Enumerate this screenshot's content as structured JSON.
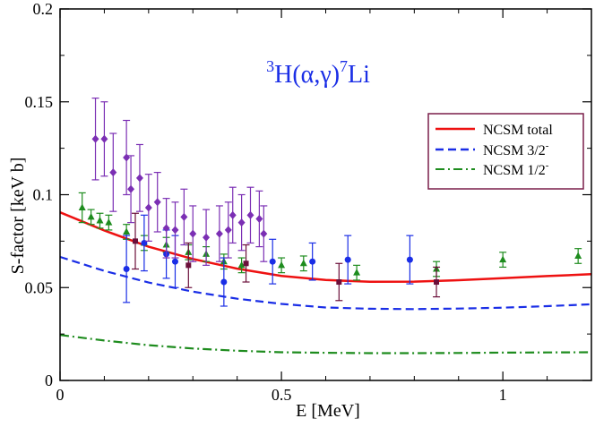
{
  "chart_data": {
    "type": "scatter",
    "title_parts": {
      "mass": "3",
      "element": "H(",
      "alpha": "α",
      "comma": ",",
      "gamma": "γ",
      "close": ")",
      "mass2": "7",
      "product": "Li"
    },
    "xlabel": "E [MeV]",
    "ylabel": "S-factor [keV b]",
    "xlim": [
      0,
      1.2
    ],
    "ylim": [
      0,
      0.2
    ],
    "x_ticks": [
      {
        "value": 0,
        "label": "0"
      },
      {
        "value": 0.5,
        "label": "0.5"
      },
      {
        "value": 1.0,
        "label": "1"
      }
    ],
    "y_ticks": [
      {
        "value": 0,
        "label": "0"
      },
      {
        "value": 0.05,
        "label": "0.05"
      },
      {
        "value": 0.1,
        "label": "0.1"
      },
      {
        "value": 0.15,
        "label": "0.15"
      },
      {
        "value": 0.2,
        "label": "0.2"
      }
    ],
    "legend": {
      "position": "top-right",
      "entries": [
        {
          "label": "NCSM total",
          "sup": ""
        },
        {
          "label": "NCSM 3/2",
          "sup": "-"
        },
        {
          "label": "NCSM 1/2",
          "sup": "-"
        }
      ]
    },
    "curves": [
      {
        "name": "NCSM total",
        "color": "#ee1111",
        "dash": "solid",
        "x": [
          0,
          0.1,
          0.2,
          0.3,
          0.4,
          0.5,
          0.6,
          0.7,
          0.8,
          0.9,
          1.0,
          1.1,
          1.2
        ],
        "y": [
          0.0905,
          0.0807,
          0.072,
          0.0654,
          0.0602,
          0.0563,
          0.0541,
          0.0531,
          0.0532,
          0.054,
          0.0551,
          0.0562,
          0.0572
        ]
      },
      {
        "name": "NCSM 3/2-",
        "color": "#1a2ee6",
        "dash": "dashed",
        "x": [
          0,
          0.1,
          0.2,
          0.3,
          0.4,
          0.5,
          0.6,
          0.7,
          0.8,
          0.9,
          1.0,
          1.1,
          1.2
        ],
        "y": [
          0.0665,
          0.059,
          0.0527,
          0.0478,
          0.044,
          0.0412,
          0.0393,
          0.0386,
          0.0384,
          0.0387,
          0.0392,
          0.04,
          0.041
        ]
      },
      {
        "name": "NCSM 1/2-",
        "color": "#1e8c1e",
        "dash": "dashdot",
        "x": [
          0,
          0.1,
          0.2,
          0.3,
          0.4,
          0.5,
          0.6,
          0.7,
          0.8,
          0.9,
          1.0,
          1.1,
          1.2
        ],
        "y": [
          0.0245,
          0.0215,
          0.019,
          0.0172,
          0.016,
          0.0152,
          0.0149,
          0.0147,
          0.0147,
          0.0148,
          0.015,
          0.0151,
          0.0152
        ]
      }
    ],
    "series": [
      {
        "name": "triangles",
        "color": "#1e8c1e",
        "marker": "triangle",
        "points": [
          {
            "x": 0.05,
            "y": 0.093,
            "err": 0.008
          },
          {
            "x": 0.07,
            "y": 0.088,
            "err": 0.004
          },
          {
            "x": 0.09,
            "y": 0.086,
            "err": 0.004
          },
          {
            "x": 0.11,
            "y": 0.085,
            "err": 0.004
          },
          {
            "x": 0.15,
            "y": 0.08,
            "err": 0.004
          },
          {
            "x": 0.19,
            "y": 0.074,
            "err": 0.004
          },
          {
            "x": 0.24,
            "y": 0.073,
            "err": 0.004
          },
          {
            "x": 0.29,
            "y": 0.069,
            "err": 0.004
          },
          {
            "x": 0.33,
            "y": 0.068,
            "err": 0.004
          },
          {
            "x": 0.37,
            "y": 0.064,
            "err": 0.004
          },
          {
            "x": 0.41,
            "y": 0.062,
            "err": 0.004
          },
          {
            "x": 0.5,
            "y": 0.062,
            "err": 0.004
          },
          {
            "x": 0.55,
            "y": 0.063,
            "err": 0.004
          },
          {
            "x": 0.67,
            "y": 0.058,
            "err": 0.004
          },
          {
            "x": 0.85,
            "y": 0.06,
            "err": 0.004
          },
          {
            "x": 1.0,
            "y": 0.065,
            "err": 0.004
          },
          {
            "x": 1.17,
            "y": 0.067,
            "err": 0.004
          }
        ]
      },
      {
        "name": "circles",
        "color": "#1a2ee6",
        "marker": "circle",
        "points": [
          {
            "x": 0.15,
            "y": 0.06,
            "err": 0.018
          },
          {
            "x": 0.19,
            "y": 0.074,
            "err": 0.015
          },
          {
            "x": 0.24,
            "y": 0.068,
            "err": 0.013
          },
          {
            "x": 0.26,
            "y": 0.064,
            "err": 0.014
          },
          {
            "x": 0.37,
            "y": 0.053,
            "err": 0.013
          },
          {
            "x": 0.48,
            "y": 0.064,
            "err": 0.012
          },
          {
            "x": 0.57,
            "y": 0.064,
            "err": 0.01
          },
          {
            "x": 0.65,
            "y": 0.065,
            "err": 0.013
          },
          {
            "x": 0.79,
            "y": 0.065,
            "err": 0.013
          }
        ]
      },
      {
        "name": "diamonds",
        "color": "#7b2fb4",
        "marker": "diamond",
        "points": [
          {
            "x": 0.08,
            "y": 0.13,
            "err": 0.022
          },
          {
            "x": 0.1,
            "y": 0.13,
            "err": 0.02
          },
          {
            "x": 0.12,
            "y": 0.112,
            "err": 0.021
          },
          {
            "x": 0.15,
            "y": 0.12,
            "err": 0.02
          },
          {
            "x": 0.16,
            "y": 0.103,
            "err": 0.018
          },
          {
            "x": 0.18,
            "y": 0.109,
            "err": 0.018
          },
          {
            "x": 0.2,
            "y": 0.093,
            "err": 0.018
          },
          {
            "x": 0.22,
            "y": 0.096,
            "err": 0.016
          },
          {
            "x": 0.24,
            "y": 0.082,
            "err": 0.016
          },
          {
            "x": 0.26,
            "y": 0.081,
            "err": 0.015
          },
          {
            "x": 0.28,
            "y": 0.088,
            "err": 0.015
          },
          {
            "x": 0.3,
            "y": 0.079,
            "err": 0.015
          },
          {
            "x": 0.33,
            "y": 0.077,
            "err": 0.015
          },
          {
            "x": 0.36,
            "y": 0.079,
            "err": 0.015
          },
          {
            "x": 0.38,
            "y": 0.081,
            "err": 0.015
          },
          {
            "x": 0.39,
            "y": 0.089,
            "err": 0.015
          },
          {
            "x": 0.41,
            "y": 0.085,
            "err": 0.015
          },
          {
            "x": 0.43,
            "y": 0.089,
            "err": 0.015
          },
          {
            "x": 0.45,
            "y": 0.087,
            "err": 0.015
          },
          {
            "x": 0.46,
            "y": 0.079,
            "err": 0.015
          }
        ]
      },
      {
        "name": "squares",
        "color": "#6b0f3a",
        "marker": "square",
        "points": [
          {
            "x": 0.17,
            "y": 0.075,
            "err": 0.015
          },
          {
            "x": 0.29,
            "y": 0.062,
            "err": 0.012
          },
          {
            "x": 0.42,
            "y": 0.063,
            "err": 0.01
          },
          {
            "x": 0.63,
            "y": 0.053,
            "err": 0.01
          },
          {
            "x": 0.85,
            "y": 0.053,
            "err": 0.008
          }
        ]
      }
    ]
  }
}
